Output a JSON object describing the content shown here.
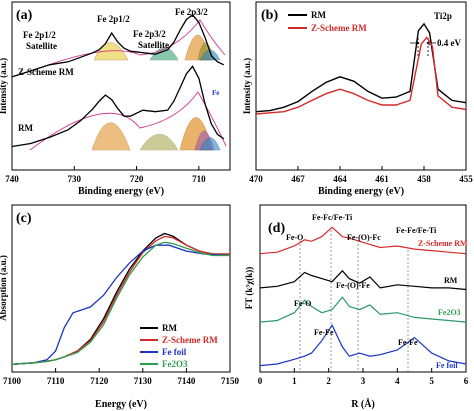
{
  "colors": {
    "black": "#000000",
    "red": "#d42a2a",
    "blue": "#1d34c4",
    "green": "#2e9e4f",
    "olive": "#8e8e1e",
    "orange": "#e08a1c",
    "yellow": "#e3c523",
    "purple": "#9b4fb8",
    "pink": "#d4388b",
    "teal": "#2f86c5",
    "oxideGreen": "#2a9a6a"
  },
  "chart_data": [
    {
      "type": "line",
      "panel_label": "(a)",
      "xlabel": "Binding energy (eV)",
      "ylabel": "Intensity (a.u.)",
      "xlim": [
        740,
        705
      ],
      "xreversed": true,
      "ylim": [
        0,
        100
      ],
      "xticks": [
        740,
        730,
        720,
        710
      ],
      "series": [
        {
          "name": "Z-Scheme RM",
          "x": [
            740,
            737,
            734,
            731,
            729,
            727,
            726,
            725,
            724,
            723,
            722,
            721,
            719,
            717,
            715,
            714,
            713,
            712,
            711,
            710,
            709,
            708,
            707,
            706
          ],
          "y": [
            56,
            60,
            64,
            66,
            69,
            72,
            74,
            78,
            85,
            79,
            75,
            73,
            72,
            71,
            74,
            79,
            87,
            94,
            97,
            92,
            82,
            70,
            66,
            64
          ]
        },
        {
          "name": "RM",
          "x": [
            740,
            737,
            734,
            731,
            729,
            727,
            726,
            725,
            724,
            723,
            722,
            721,
            719,
            717,
            715,
            714,
            713,
            712,
            711,
            710,
            709,
            708,
            707,
            706
          ],
          "y": [
            10,
            12,
            16,
            21,
            27,
            35,
            40,
            44,
            41,
            35,
            30,
            30,
            34,
            33,
            34,
            40,
            49,
            58,
            63,
            55,
            38,
            25,
            18,
            15
          ]
        }
      ],
      "annotations": [
        "Fe 2p1/2",
        "Fe 2p1/2",
        "Satellite",
        "Fe 2p3/2",
        "Fe 2p3/2",
        "Satellite",
        "Z-Scheme RM",
        "RM",
        "Fe"
      ]
    },
    {
      "type": "line",
      "panel_label": "(b)",
      "xlabel": "Binding energy (eV)",
      "ylabel": "Intensity (a.u.)",
      "xlim": [
        470,
        455
      ],
      "xreversed": true,
      "ylim": [
        0,
        100
      ],
      "xticks": [
        470,
        467,
        464,
        461,
        458,
        455
      ],
      "series": [
        {
          "name": "RM",
          "x": [
            470,
            469,
            468,
            467,
            466,
            465,
            464,
            463,
            462,
            461,
            460,
            459,
            458.4,
            458,
            457.6,
            457,
            456,
            455
          ],
          "y": [
            10,
            11,
            14,
            19,
            28,
            36,
            41,
            37,
            28,
            22,
            23,
            28,
            82,
            88,
            80,
            30,
            20,
            18
          ]
        },
        {
          "name": "Z-Scheme RM",
          "x": [
            470,
            469,
            468,
            467,
            466,
            465,
            464,
            463,
            462,
            461,
            460,
            459,
            458.2,
            457.8,
            457.4,
            457,
            456,
            455
          ],
          "y": [
            8,
            9,
            10,
            14,
            20,
            26,
            30,
            26,
            20,
            16,
            16,
            20,
            70,
            76,
            68,
            24,
            14,
            12
          ]
        }
      ],
      "annotations": [
        "Ti2p",
        "0.4 eV"
      ]
    },
    {
      "type": "line",
      "panel_label": "(c)",
      "xlabel": "Energy (eV)",
      "ylabel": "Absorption (a.u.)",
      "xlim": [
        7100,
        7150
      ],
      "ylim": [
        0,
        100
      ],
      "xticks": [
        7100,
        7110,
        7120,
        7130,
        7140,
        7150
      ],
      "series": [
        {
          "name": "RM",
          "x": [
            7100,
            7105,
            7108,
            7110,
            7112,
            7115,
            7118,
            7121,
            7124,
            7127,
            7130,
            7133,
            7135,
            7137,
            7140,
            7143,
            7146,
            7150
          ],
          "y": [
            3,
            4,
            5,
            6,
            8,
            12,
            20,
            34,
            52,
            68,
            80,
            89,
            92,
            90,
            84,
            80,
            78,
            78
          ]
        },
        {
          "name": "Z-Scheme RM",
          "x": [
            7100,
            7105,
            7108,
            7110,
            7112,
            7115,
            7118,
            7121,
            7124,
            7127,
            7130,
            7133,
            7135,
            7137,
            7140,
            7143,
            7146,
            7150
          ],
          "y": [
            3,
            4,
            5,
            6,
            8,
            12,
            19,
            32,
            50,
            66,
            79,
            87,
            90,
            89,
            84,
            80,
            78,
            78
          ]
        },
        {
          "name": "Fe foil",
          "x": [
            7100,
            7105,
            7108,
            7110,
            7112,
            7114,
            7116,
            7118,
            7121,
            7124,
            7127,
            7130,
            7133,
            7136,
            7140,
            7144,
            7150
          ],
          "y": [
            3,
            4,
            6,
            12,
            28,
            38,
            40,
            42,
            50,
            62,
            72,
            80,
            84,
            84,
            80,
            78,
            77
          ]
        },
        {
          "name": "Fe2O3",
          "x": [
            7100,
            7105,
            7108,
            7110,
            7112,
            7115,
            7118,
            7121,
            7124,
            7127,
            7130,
            7133,
            7135,
            7137,
            7140,
            7143,
            7146,
            7150
          ],
          "y": [
            3,
            4,
            5,
            6,
            8,
            11,
            18,
            30,
            48,
            64,
            76,
            84,
            86,
            85,
            82,
            79,
            77,
            77
          ]
        }
      ]
    },
    {
      "type": "line",
      "panel_label": "(d)",
      "xlabel": "R (Å)",
      "ylabel": "FT (k³χ(k))",
      "xlim": [
        0,
        6
      ],
      "ylim": [
        0,
        100
      ],
      "xticks": [
        0,
        1,
        2,
        3,
        4,
        5,
        6
      ],
      "series": [
        {
          "name": "Z-Scheme RM",
          "x": [
            0,
            0.5,
            1,
            1.3,
            1.5,
            1.8,
            2.1,
            2.4,
            2.6,
            2.9,
            3.2,
            3.5,
            4,
            4.5,
            5,
            5.5,
            6
          ],
          "y": [
            74,
            75,
            79,
            83,
            82,
            85,
            91,
            85,
            84,
            82,
            80,
            78,
            79,
            77,
            76,
            75,
            74
          ]
        },
        {
          "name": "RM",
          "x": [
            0,
            0.5,
            1,
            1.3,
            1.5,
            1.8,
            2.1,
            2.4,
            2.6,
            2.9,
            3.2,
            3.5,
            4,
            4.5,
            5,
            5.5,
            6
          ],
          "y": [
            52,
            53,
            56,
            62,
            60,
            58,
            56,
            63,
            58,
            55,
            59,
            52,
            54,
            53,
            52,
            52,
            51
          ]
        },
        {
          "name": "Fe2O3",
          "x": [
            0,
            0.5,
            1,
            1.3,
            1.5,
            1.8,
            2.1,
            2.4,
            2.6,
            2.9,
            3.2,
            3.5,
            4,
            4.5,
            5,
            5.5,
            6
          ],
          "y": [
            30,
            31,
            36,
            44,
            40,
            36,
            38,
            46,
            40,
            38,
            41,
            35,
            36,
            33,
            32,
            31,
            30
          ]
        },
        {
          "name": "Fe foil",
          "x": [
            0,
            0.5,
            1,
            1.3,
            1.5,
            1.8,
            2.1,
            2.4,
            2.6,
            2.9,
            3.2,
            3.5,
            4,
            4.5,
            5,
            5.5,
            6
          ],
          "y": [
            2,
            3,
            6,
            8,
            10,
            18,
            28,
            14,
            8,
            10,
            8,
            9,
            12,
            20,
            10,
            5,
            3
          ]
        }
      ],
      "annotations": [
        "Fe-Fc/Fe-Ti",
        "Fe-O",
        "Fe-(O)-Fc",
        "Fe-Fe/Fe-Ti",
        "Fe-(O)-Fe",
        "Fe-O",
        "Fe-Fe",
        "Fe-Fe"
      ]
    }
  ]
}
